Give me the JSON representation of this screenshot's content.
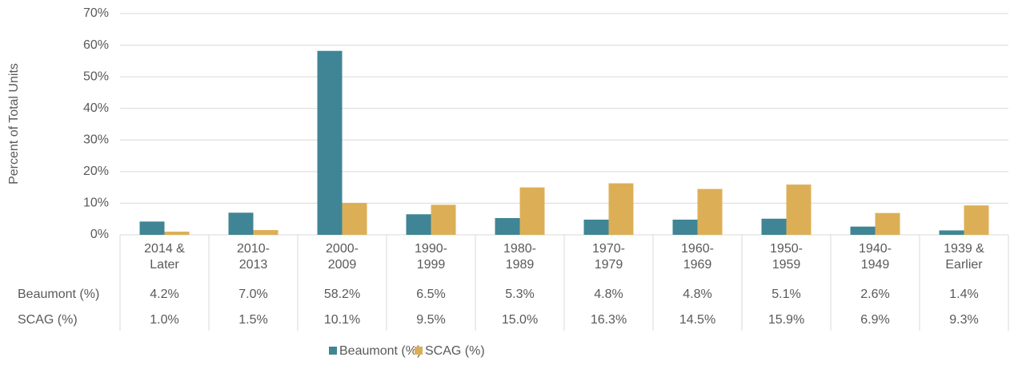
{
  "chart_data": {
    "type": "bar",
    "y_axis_label": "Percent of Total Units",
    "categories": [
      "2014 & Later",
      "2010-2013",
      "2000-2009",
      "1990-1999",
      "1980-1989",
      "1970-1979",
      "1960-1969",
      "1950-1959",
      "1940-1949",
      "1939 & Earlier"
    ],
    "series": [
      {
        "name": "Beaumont (%)",
        "color": "#3f8595",
        "values": [
          4.2,
          7.0,
          58.2,
          6.5,
          5.3,
          4.8,
          4.8,
          5.1,
          2.6,
          1.4
        ],
        "value_labels": [
          "4.2%",
          "7.0%",
          "58.2%",
          "6.5%",
          "5.3%",
          "4.8%",
          "4.8%",
          "5.1%",
          "2.6%",
          "1.4%"
        ]
      },
      {
        "name": "SCAG (%)",
        "color": "#dcaf56",
        "values": [
          1.0,
          1.5,
          10.1,
          9.5,
          15.0,
          16.3,
          14.5,
          15.9,
          6.9,
          9.3
        ],
        "value_labels": [
          "1.0%",
          "1.5%",
          "10.1%",
          "9.5%",
          "15.0%",
          "16.3%",
          "14.5%",
          "15.9%",
          "6.9%",
          "9.3%"
        ]
      }
    ],
    "ylim": [
      0,
      70
    ],
    "yticks": [
      {
        "value": 0,
        "label": "0%"
      },
      {
        "value": 10,
        "label": "10%"
      },
      {
        "value": 20,
        "label": "20%"
      },
      {
        "value": 30,
        "label": "30%"
      },
      {
        "value": 40,
        "label": "40%"
      },
      {
        "value": 50,
        "label": "50%"
      },
      {
        "value": 60,
        "label": "60%"
      },
      {
        "value": 70,
        "label": "70%"
      }
    ],
    "grid": true,
    "legend": "bottom",
    "data_table": true
  }
}
